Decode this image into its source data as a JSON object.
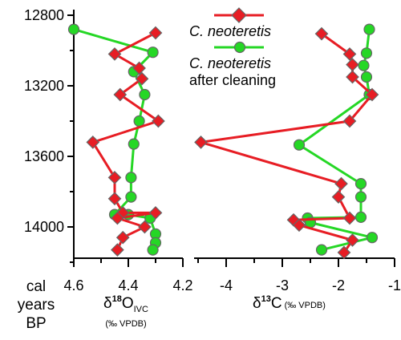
{
  "colors": {
    "before": "#e71d24",
    "after": "#25d725",
    "marker_outline": "#666666",
    "axis": "#000000"
  },
  "legend": {
    "before_label": "C. neoteretis",
    "after_label": "C. neoteretis",
    "after_note": "after cleaning"
  },
  "y_axis": {
    "label_line_1": "cal",
    "label_line_2": "years",
    "label_line_3": "BP",
    "ticks": [
      "12800",
      "13200",
      "13600",
      "14000"
    ]
  },
  "axes": {
    "oxygen": {
      "label_symbol": "δ",
      "label_sup": "18",
      "label_main": "O",
      "label_sub": "IVC",
      "label_unit": "(‰ VPDB)",
      "ticks": [
        "4.6",
        "4.4",
        "4.2"
      ]
    },
    "carbon": {
      "label_symbol": "δ",
      "label_sup": "13",
      "label_main": "C",
      "label_unit": "(‰ VPDB)",
      "ticks": [
        "-4",
        "-3",
        "-2",
        "-1"
      ]
    }
  },
  "chart_data": [
    {
      "type": "line",
      "title": "",
      "ylabel": "cal years BP",
      "xlabel": "δ18OIVC (‰ VPDB)",
      "xlim": [
        4.62,
        4.22
      ],
      "ylim": [
        12760,
        14280
      ],
      "y_reversed": true,
      "grid": false,
      "legend_position": "top-right",
      "series": [
        {
          "name": "C. neoteretis",
          "marker": "diamond",
          "points": [
            [
              4.3,
              12900
            ],
            [
              4.45,
              13020
            ],
            [
              4.36,
              13100
            ],
            [
              4.35,
              13160
            ],
            [
              4.43,
              13250
            ],
            [
              4.29,
              13400
            ],
            [
              4.53,
              13520
            ],
            [
              4.45,
              13720
            ],
            [
              4.45,
              13840
            ],
            [
              4.42,
              13920
            ],
            [
              4.3,
              13920
            ],
            [
              4.44,
              13950
            ],
            [
              4.34,
              14000
            ],
            [
              4.42,
              14060
            ],
            [
              4.44,
              14130
            ]
          ]
        },
        {
          "name": "C. neoteretis after cleaning",
          "marker": "circle",
          "points": [
            [
              4.6,
              12880
            ],
            [
              4.31,
              13010
            ],
            [
              4.38,
              13120
            ],
            [
              4.34,
              13250
            ],
            [
              4.36,
              13400
            ],
            [
              4.38,
              13530
            ],
            [
              4.39,
              13720
            ],
            [
              4.39,
              13830
            ],
            [
              4.45,
              13930
            ],
            [
              4.4,
              13930
            ],
            [
              4.32,
              13950
            ],
            [
              4.3,
              14040
            ],
            [
              4.3,
              14090
            ],
            [
              4.31,
              14130
            ]
          ]
        }
      ]
    },
    {
      "type": "line",
      "title": "",
      "ylabel": "",
      "xlabel": "δ13C (‰ VPDB)",
      "xlim": [
        -4.6,
        -1.05
      ],
      "ylim": [
        12760,
        14280
      ],
      "y_reversed": true,
      "grid": false,
      "series": [
        {
          "name": "C. neoteretis",
          "marker": "diamond",
          "points": [
            [
              -2.3,
              12905
            ],
            [
              -1.8,
              13020
            ],
            [
              -1.75,
              13080
            ],
            [
              -1.75,
              13150
            ],
            [
              -1.4,
              13250
            ],
            [
              -1.8,
              13400
            ],
            [
              -4.45,
              13520
            ],
            [
              -1.95,
              13755
            ],
            [
              -2.0,
              13830
            ],
            [
              -1.8,
              13950
            ],
            [
              -2.8,
              13960
            ],
            [
              -2.7,
              13990
            ],
            [
              -1.75,
              14075
            ],
            [
              -1.9,
              14145
            ]
          ]
        },
        {
          "name": "C. neoteretis after cleaning",
          "marker": "circle",
          "points": [
            [
              -1.45,
              12880
            ],
            [
              -1.5,
              13015
            ],
            [
              -1.55,
              13085
            ],
            [
              -1.5,
              13150
            ],
            [
              -1.45,
              13250
            ],
            [
              -2.7,
              13535
            ],
            [
              -1.6,
              13755
            ],
            [
              -1.6,
              13830
            ],
            [
              -1.6,
              13945
            ],
            [
              -2.55,
              13950
            ],
            [
              -2.5,
              13975
            ],
            [
              -1.4,
              14060
            ],
            [
              -2.3,
              14130
            ]
          ]
        }
      ]
    }
  ]
}
